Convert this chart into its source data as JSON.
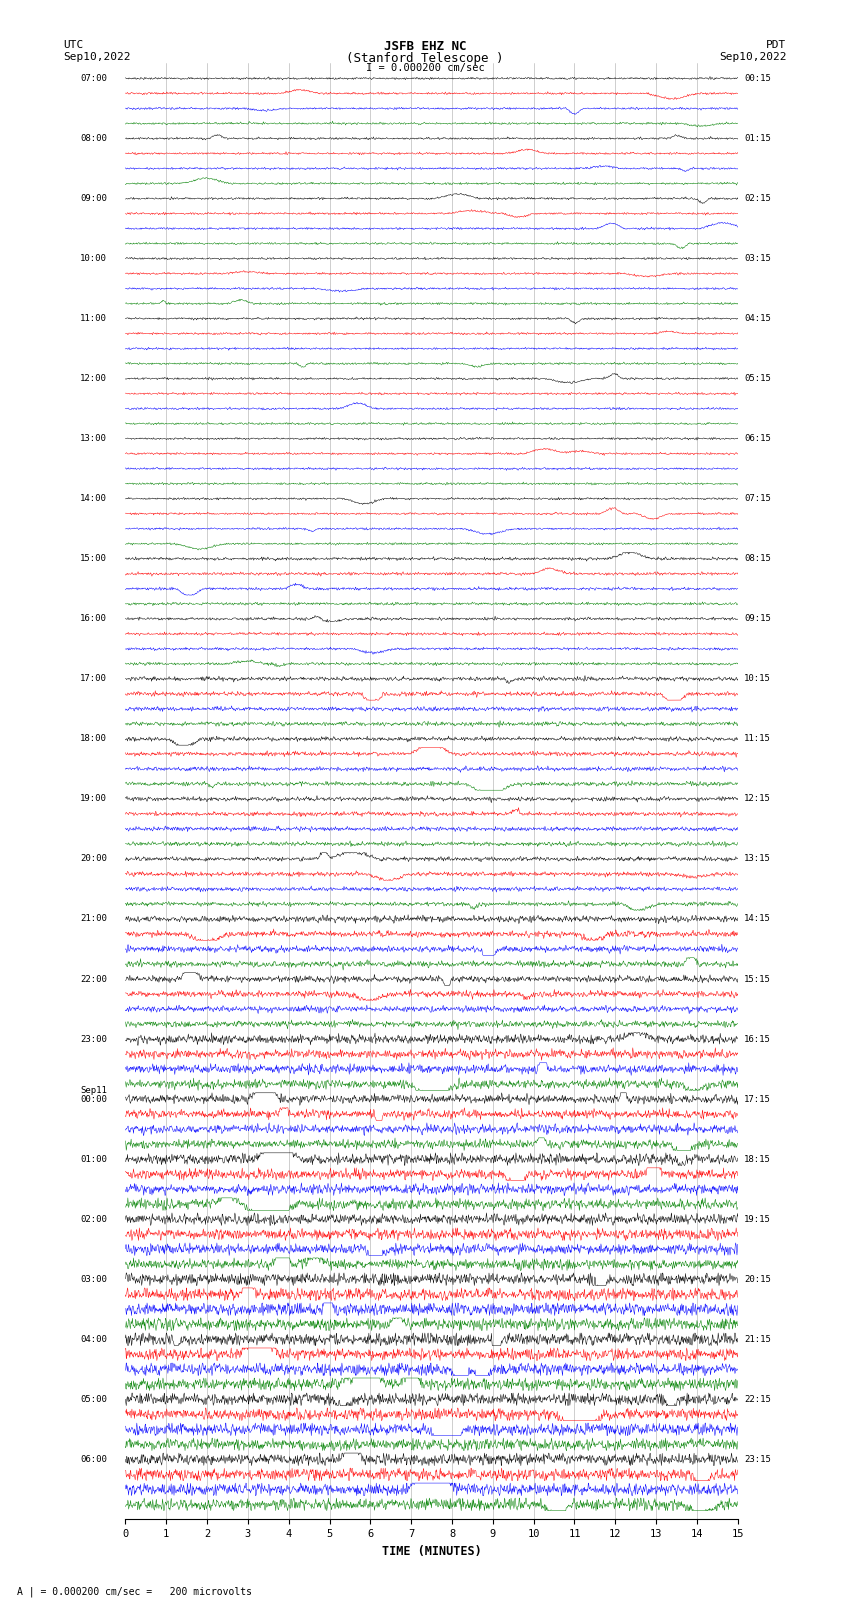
{
  "title_line1": "JSFB EHZ NC",
  "title_line2": "(Stanford Telescope )",
  "scale_label": "I = 0.000200 cm/sec",
  "left_tz": "UTC",
  "right_tz": "PDT",
  "left_date": "Sep10,2022",
  "right_date": "Sep10,2022",
  "sep11_label": "Sep11",
  "bottom_label": "TIME (MINUTES)",
  "footer_text": "A | = 0.000200 cm/sec =   200 microvolts",
  "colors": [
    "black",
    "red",
    "blue",
    "green"
  ],
  "xmin": 0,
  "xmax": 15,
  "xticks": [
    0,
    1,
    2,
    3,
    4,
    5,
    6,
    7,
    8,
    9,
    10,
    11,
    12,
    13,
    14,
    15
  ],
  "fig_width": 8.5,
  "fig_height": 16.13,
  "dpi": 100,
  "left_hour_labels": [
    "07:00",
    "08:00",
    "09:00",
    "10:00",
    "11:00",
    "12:00",
    "13:00",
    "14:00",
    "15:00",
    "16:00",
    "17:00",
    "18:00",
    "19:00",
    "20:00",
    "21:00",
    "22:00",
    "23:00",
    "00:00",
    "01:00",
    "02:00",
    "03:00",
    "04:00",
    "05:00",
    "06:00"
  ],
  "right_hour_labels": [
    "00:15",
    "01:15",
    "02:15",
    "03:15",
    "04:15",
    "05:15",
    "06:15",
    "07:15",
    "08:15",
    "09:15",
    "10:15",
    "11:15",
    "12:15",
    "13:15",
    "14:15",
    "15:15",
    "16:15",
    "17:15",
    "18:15",
    "19:15",
    "20:15",
    "21:15",
    "22:15",
    "23:15"
  ],
  "n_hours": 24,
  "traces_per_hour": 4,
  "sep11_at_hour_idx": 17
}
